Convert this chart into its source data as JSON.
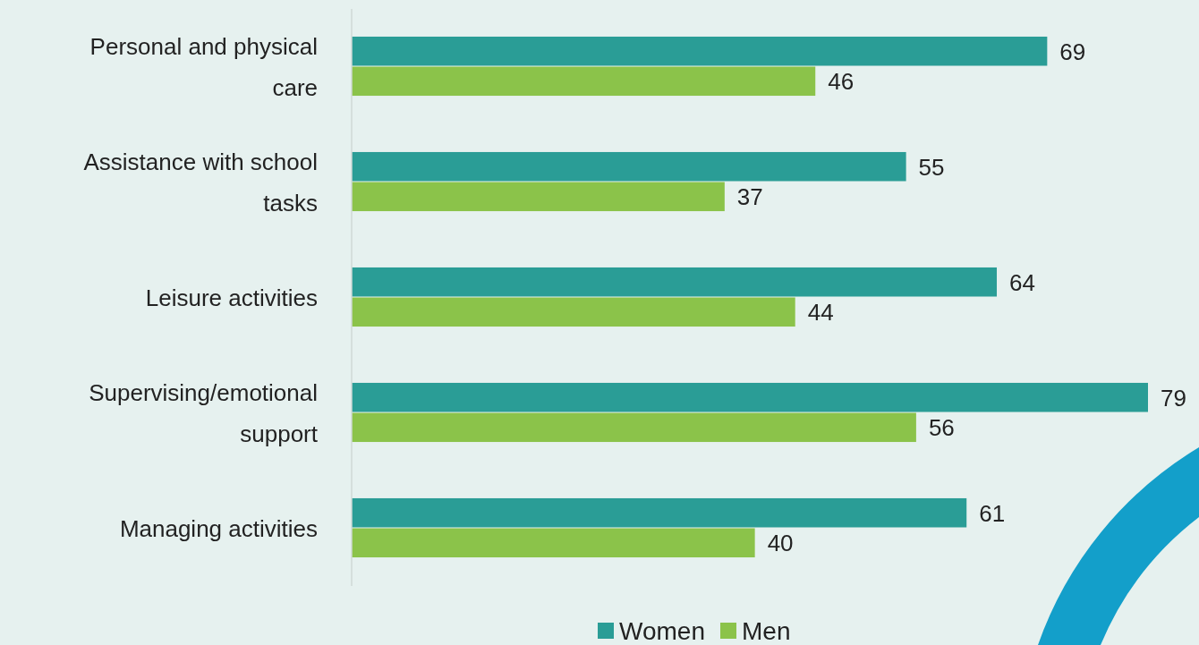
{
  "chart_data": {
    "type": "bar",
    "orientation": "horizontal",
    "categories": [
      "Personal and physical care",
      "Assistance with school tasks",
      "Leisure activities",
      "Supervising/emotional support",
      "Managing activities"
    ],
    "series": [
      {
        "name": "Women",
        "color": "#2a9d96",
        "values": [
          69,
          55,
          64,
          79,
          61
        ]
      },
      {
        "name": "Men",
        "color": "#8bc34a",
        "values": [
          46,
          37,
          44,
          56,
          40
        ]
      }
    ],
    "data_labels": true,
    "legend": "bottom"
  }
}
